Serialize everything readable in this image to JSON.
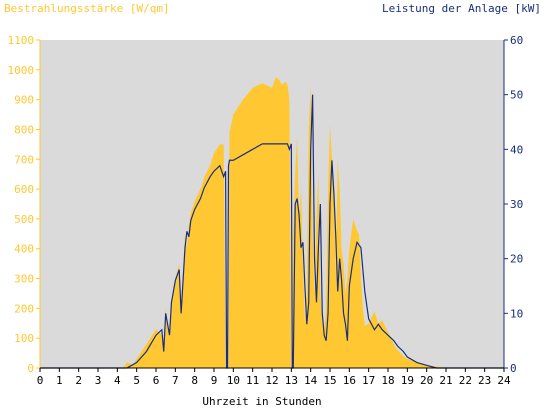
{
  "chart_data": {
    "type": "area",
    "left_axis_title": "Bestrahlungsstärke [W/qm]",
    "right_axis_title": "Leistung der Anlage [kW]",
    "xlabel": "Uhrzeit in Stunden",
    "xlim": [
      0,
      24
    ],
    "ylim_left": [
      0,
      1100
    ],
    "ylim_right": [
      0,
      60
    ],
    "x_ticks": [
      "0",
      "1",
      "2",
      "3",
      "4",
      "5",
      "6",
      "7",
      "8",
      "9",
      "10",
      "11",
      "12",
      "13",
      "14",
      "15",
      "16",
      "17",
      "18",
      "19",
      "20",
      "21",
      "22",
      "23",
      "24"
    ],
    "left_ticks": [
      "0",
      "100",
      "200",
      "300",
      "400",
      "500",
      "600",
      "700",
      "800",
      "900",
      "1000",
      "1100"
    ],
    "right_ticks": [
      "0",
      "10",
      "20",
      "30",
      "40",
      "50",
      "60"
    ],
    "grid": false,
    "colors": {
      "plot_background": "#dadada",
      "irradiance": "#ffc832",
      "power": "#1a2f7a",
      "left_axis": "#ffc832",
      "right_axis": "#1a2f7a",
      "bottom_axis": "#000000"
    },
    "series": [
      {
        "axis": "left",
        "style": "area",
        "x": [
          0,
          4.3,
          4.5,
          4.8,
          5.0,
          5.5,
          6.0,
          6.3,
          6.4,
          6.5,
          6.6,
          6.7,
          6.8,
          7.0,
          7.2,
          7.3,
          7.5,
          7.6,
          7.7,
          7.8,
          8.0,
          8.3,
          8.5,
          8.8,
          9.0,
          9.3,
          9.5,
          9.6,
          9.65,
          9.7,
          9.75,
          9.8,
          10.0,
          10.5,
          11.0,
          11.5,
          12.0,
          12.2,
          12.4,
          12.5,
          12.7,
          12.8,
          12.9,
          12.95,
          13.0,
          13.05,
          13.1,
          13.2,
          13.3,
          13.4,
          13.5,
          13.6,
          13.7,
          13.8,
          13.9,
          14.0,
          14.1,
          14.2,
          14.3,
          14.4,
          14.5,
          14.6,
          14.7,
          14.8,
          14.9,
          15.0,
          15.1,
          15.2,
          15.3,
          15.4,
          15.5,
          15.6,
          15.7,
          15.8,
          15.9,
          16.0,
          16.2,
          16.3,
          16.4,
          16.5,
          16.6,
          16.7,
          16.8,
          17.0,
          17.3,
          17.5,
          17.7,
          18.0,
          18.3,
          18.5,
          18.8,
          19.0,
          19.5,
          20.0,
          20.5,
          21.0,
          24
        ],
        "y": [
          0,
          0,
          20,
          10,
          30,
          80,
          130,
          110,
          60,
          200,
          150,
          100,
          220,
          300,
          350,
          200,
          450,
          400,
          480,
          520,
          560,
          600,
          640,
          680,
          720,
          750,
          750,
          0,
          0,
          0,
          0,
          790,
          850,
          900,
          940,
          955,
          940,
          975,
          965,
          950,
          960,
          950,
          900,
          400,
          0,
          0,
          450,
          650,
          780,
          500,
          600,
          350,
          150,
          250,
          800,
          950,
          450,
          250,
          500,
          650,
          250,
          150,
          120,
          200,
          600,
          820,
          700,
          600,
          300,
          700,
          600,
          400,
          350,
          250,
          300,
          400,
          500,
          480,
          460,
          450,
          300,
          200,
          140,
          150,
          190,
          150,
          160,
          120,
          80,
          60,
          40,
          30,
          20,
          10,
          5,
          0,
          0
        ]
      },
      {
        "axis": "right",
        "style": "line",
        "x": [
          0,
          4.5,
          5.0,
          5.5,
          6.0,
          6.3,
          6.4,
          6.5,
          6.6,
          6.7,
          6.8,
          7.0,
          7.2,
          7.3,
          7.5,
          7.6,
          7.7,
          7.8,
          8.0,
          8.3,
          8.5,
          8.8,
          9.0,
          9.3,
          9.4,
          9.5,
          9.6,
          9.65,
          9.7,
          9.75,
          9.8,
          10.0,
          10.5,
          11.0,
          11.5,
          12.0,
          12.5,
          12.8,
          12.9,
          13.0,
          13.05,
          13.1,
          13.2,
          13.3,
          13.4,
          13.5,
          13.6,
          13.7,
          13.8,
          13.9,
          14.0,
          14.1,
          14.2,
          14.3,
          14.4,
          14.5,
          14.6,
          14.7,
          14.8,
          14.9,
          15.0,
          15.1,
          15.2,
          15.3,
          15.4,
          15.5,
          15.6,
          15.7,
          15.8,
          15.9,
          16.0,
          16.2,
          16.4,
          16.6,
          16.8,
          17.0,
          17.3,
          17.5,
          17.7,
          18.0,
          18.3,
          18.5,
          18.8,
          19.0,
          19.5,
          20.0,
          20.5,
          24
        ],
        "y": [
          0,
          0,
          1,
          3,
          6,
          7,
          3,
          10,
          8,
          6,
          12,
          16,
          18,
          10,
          22,
          25,
          24,
          27,
          29,
          31,
          33,
          35,
          36,
          37,
          36,
          35,
          36,
          0,
          0,
          37,
          38,
          38,
          39,
          40,
          41,
          41,
          41,
          41,
          40,
          41,
          0,
          0,
          30,
          31,
          28,
          22,
          23,
          15,
          8,
          12,
          40,
          50,
          20,
          12,
          22,
          30,
          10,
          6,
          5,
          10,
          30,
          38,
          32,
          24,
          14,
          20,
          16,
          10,
          8,
          5,
          15,
          20,
          23,
          22,
          14,
          9,
          7,
          8,
          7,
          6,
          5,
          4,
          3,
          2,
          1,
          0.5,
          0,
          0
        ]
      }
    ]
  }
}
